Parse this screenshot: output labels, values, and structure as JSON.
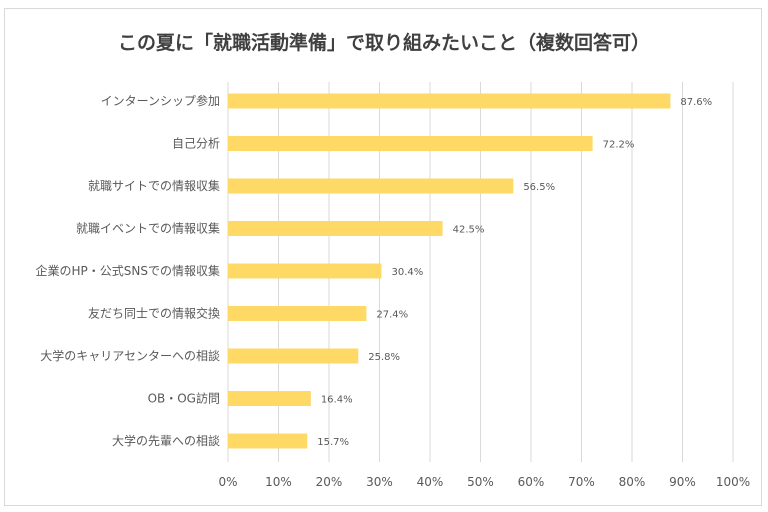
{
  "chart_data": {
    "type": "bar",
    "orientation": "horizontal",
    "title": "この夏に「就職活動準備」で取り組みたいこと（複数回答可）",
    "categories": [
      "インターンシップ参加",
      "自己分析",
      "就職サイトでの情報収集",
      "就職イベントでの情報収集",
      "企業のHP・公式SNSでの情報収集",
      "友だち同士での情報交換",
      "大学のキャリアセンターへの相談",
      "OB・OG訪問",
      "大学の先輩への相談"
    ],
    "values": [
      87.6,
      72.2,
      56.5,
      42.5,
      30.4,
      27.4,
      25.8,
      16.4,
      15.7
    ],
    "value_labels": [
      "87.6%",
      "72.2%",
      "56.5%",
      "42.5%",
      "30.4%",
      "27.4%",
      "25.8%",
      "16.4%",
      "15.7%"
    ],
    "xlim": [
      0,
      100
    ],
    "x_ticks": [
      "0%",
      "10%",
      "20%",
      "30%",
      "40%",
      "50%",
      "60%",
      "70%",
      "80%",
      "90%",
      "100%"
    ],
    "grid": "vertical",
    "colors": {
      "bar": "#FFD966",
      "grid": "#d9d9d9"
    }
  }
}
